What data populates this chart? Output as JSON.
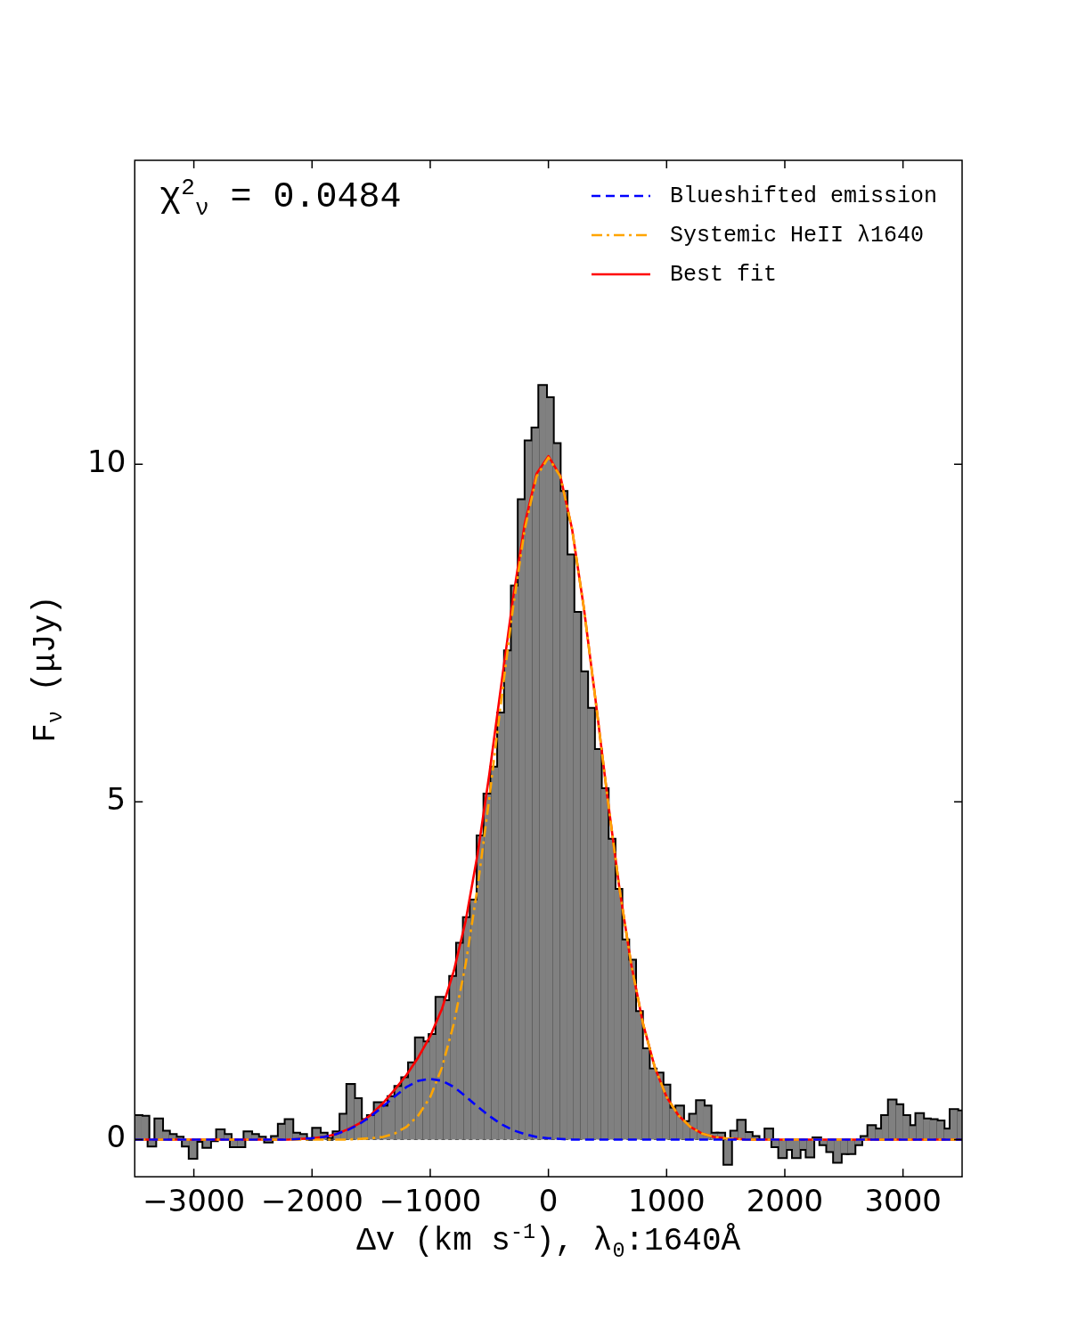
{
  "chart_data": {
    "type": "histogram",
    "xlabel": "Δv (km s$^{-1}$), λ$_{0}$:1640Å",
    "ylabel": "F$_{ν}$ (μJy)",
    "annotations": [
      "χ$^{2}$$_{ν}$ = 0.0484"
    ],
    "color": "#808080",
    "bins": [
      -3500,
      -3442,
      -3384,
      -3326,
      -3268,
      -3210,
      -3152,
      -3094,
      -3036,
      -2978,
      -2920,
      -2862,
      -2804,
      -2746,
      -2688,
      -2630,
      -2572,
      -2514,
      -2456,
      -2398,
      -2340,
      -2282,
      -2224,
      -2166,
      -2108,
      -2050,
      -1992,
      -1934,
      -1876,
      -1818,
      -1760,
      -1702,
      -1644,
      -1586,
      -1528,
      -1470,
      -1412,
      -1354,
      -1296,
      -1238,
      -1180,
      -1122,
      -1064,
      -1006,
      -948,
      -890,
      -832,
      -774,
      -716,
      -658,
      -600,
      -542,
      -484,
      -426,
      -368,
      -310,
      -252,
      -194,
      -136,
      -78,
      -20,
      38,
      96,
      154,
      212,
      270,
      328,
      386,
      444,
      502,
      560,
      618,
      676,
      734,
      792,
      850,
      908,
      966,
      1024,
      1082,
      1140,
      1198,
      1256,
      1314,
      1372,
      1430,
      1488,
      1546,
      1604,
      1662,
      1720,
      1778,
      1836,
      1894,
      1952,
      2010,
      2068,
      2126,
      2184,
      2242,
      2300,
      2358,
      2416,
      2474,
      2532,
      2590,
      2648,
      2706,
      2764,
      2822,
      2880,
      2938,
      2996,
      3054,
      3112,
      3170,
      3228,
      3286,
      3344,
      3402,
      3460,
      3500
    ],
    "values": [
      0.35,
      0.34,
      -0.09,
      0.3,
      0.12,
      0.07,
      0.03,
      -0.09,
      -0.27,
      -0.02,
      -0.11,
      -0.01,
      0.14,
      0.07,
      -0.1,
      -0.1,
      0.11,
      0.07,
      0.03,
      -0.03,
      0.04,
      0.22,
      0.29,
      0.09,
      0.07,
      0.01,
      0.16,
      0.09,
      0.01,
      0.11,
      0.37,
      0.81,
      0.6,
      0.29,
      0.35,
      0.54,
      0.49,
      0.63,
      0.78,
      0.91,
      1.13,
      1.5,
      1.44,
      1.55,
      2.1,
      2.05,
      2.41,
      2.9,
      3.28,
      3.54,
      4.49,
      5.11,
      5.51,
      6.31,
      7.23,
      8.19,
      9.47,
      10.34,
      10.53,
      11.16,
      10.98,
      10.3,
      9.59,
      8.65,
      7.8,
      6.92,
      6.38,
      5.77,
      5.19,
      4.44,
      3.7,
      2.95,
      2.65,
      1.89,
      1.34,
      1.04,
      0.98,
      0.8,
      0.46,
      0.49,
      0.26,
      0.37,
      0.57,
      0.49,
      0.09,
      0.09,
      -0.36,
      0.12,
      0.28,
      0.1,
      0.04,
      null,
      0.15,
      -0.1,
      -0.26,
      -0.14,
      -0.26,
      -0.14,
      -0.25,
      0.02,
      -0.07,
      -0.17,
      -0.33,
      -0.2,
      -0.2,
      -0.07,
      0.04,
      0.2,
      0.15,
      0.35,
      0.58,
      0.51,
      0.35,
      0.2,
      0.38,
      0.3,
      0.29,
      0.27,
      0.15,
      0.44,
      0.42
    ],
    "series": [
      {
        "type": "line",
        "name": "Blueshifted emission",
        "color": "#0000ff",
        "line_style": "dashed",
        "x": [
          -3500,
          -2400,
          -2300,
          -2200,
          -2100,
          -2000,
          -1900,
          -1800,
          -1700,
          -1600,
          -1500,
          -1400,
          -1300,
          -1200,
          -1100,
          -1000,
          -900,
          -800,
          -700,
          -600,
          -500,
          -400,
          -300,
          -200,
          -100,
          0,
          100,
          200,
          300,
          400,
          3500
        ],
        "values": [
          0,
          0,
          0,
          0,
          0.01,
          0.02,
          0.04,
          0.08,
          0.14,
          0.23,
          0.35,
          0.49,
          0.64,
          0.78,
          0.87,
          0.9,
          0.87,
          0.78,
          0.64,
          0.49,
          0.35,
          0.23,
          0.14,
          0.08,
          0.04,
          0.02,
          0.01,
          0,
          0,
          0,
          0
        ]
      },
      {
        "type": "line",
        "name": "Systemic HeII λ1640",
        "color": "#ffa500",
        "line_style": "dashdot",
        "x": [
          -3500,
          -1800,
          -1700,
          -1600,
          -1500,
          -1400,
          -1300,
          -1200,
          -1100,
          -1000,
          -900,
          -800,
          -700,
          -600,
          -500,
          -400,
          -300,
          -200,
          -100,
          0,
          100,
          200,
          300,
          400,
          500,
          600,
          700,
          800,
          900,
          1000,
          1100,
          1200,
          1300,
          1400,
          1500,
          1600,
          1700,
          1800,
          3500
        ],
        "values": [
          0,
          0,
          0,
          0.01,
          0.02,
          0.04,
          0.09,
          0.19,
          0.36,
          0.63,
          1.07,
          1.72,
          2.6,
          3.73,
          5.06,
          6.49,
          7.87,
          9.04,
          9.82,
          10.1,
          9.82,
          9.04,
          7.87,
          6.49,
          5.06,
          3.73,
          2.6,
          1.72,
          1.07,
          0.63,
          0.36,
          0.19,
          0.09,
          0.04,
          0.02,
          0.01,
          0,
          0,
          0
        ]
      },
      {
        "type": "line",
        "name": "Best fit",
        "color": "#ff0000",
        "line_style": "solid",
        "x": [
          -3500,
          -2400,
          -2300,
          -2200,
          -2100,
          -2000,
          -1900,
          -1800,
          -1700,
          -1600,
          -1500,
          -1400,
          -1300,
          -1200,
          -1100,
          -1000,
          -900,
          -800,
          -700,
          -600,
          -500,
          -400,
          -300,
          -200,
          -100,
          0,
          100,
          200,
          300,
          400,
          500,
          600,
          700,
          800,
          900,
          1000,
          1100,
          1200,
          1300,
          1400,
          1500,
          1600,
          1700,
          1800,
          3500
        ],
        "values": [
          0,
          0,
          0,
          0,
          0.01,
          0.02,
          0.04,
          0.08,
          0.15,
          0.24,
          0.37,
          0.54,
          0.74,
          0.96,
          1.22,
          1.53,
          1.94,
          2.5,
          3.24,
          4.22,
          5.41,
          6.72,
          8.01,
          9.12,
          9.86,
          10.12,
          9.83,
          9.04,
          7.87,
          6.49,
          5.06,
          3.73,
          2.6,
          1.72,
          1.07,
          0.63,
          0.36,
          0.19,
          0.09,
          0.04,
          0.02,
          0.01,
          0,
          0,
          0
        ]
      }
    ],
    "xlim": [
      -3500,
      3500
    ],
    "xticks": [
      -3000,
      -2000,
      -1000,
      0,
      1000,
      2000,
      3000
    ],
    "ylim": [
      -0.55,
      14.5
    ],
    "yticks": [
      0,
      5,
      10
    ],
    "grid": false,
    "legend": "top right"
  }
}
